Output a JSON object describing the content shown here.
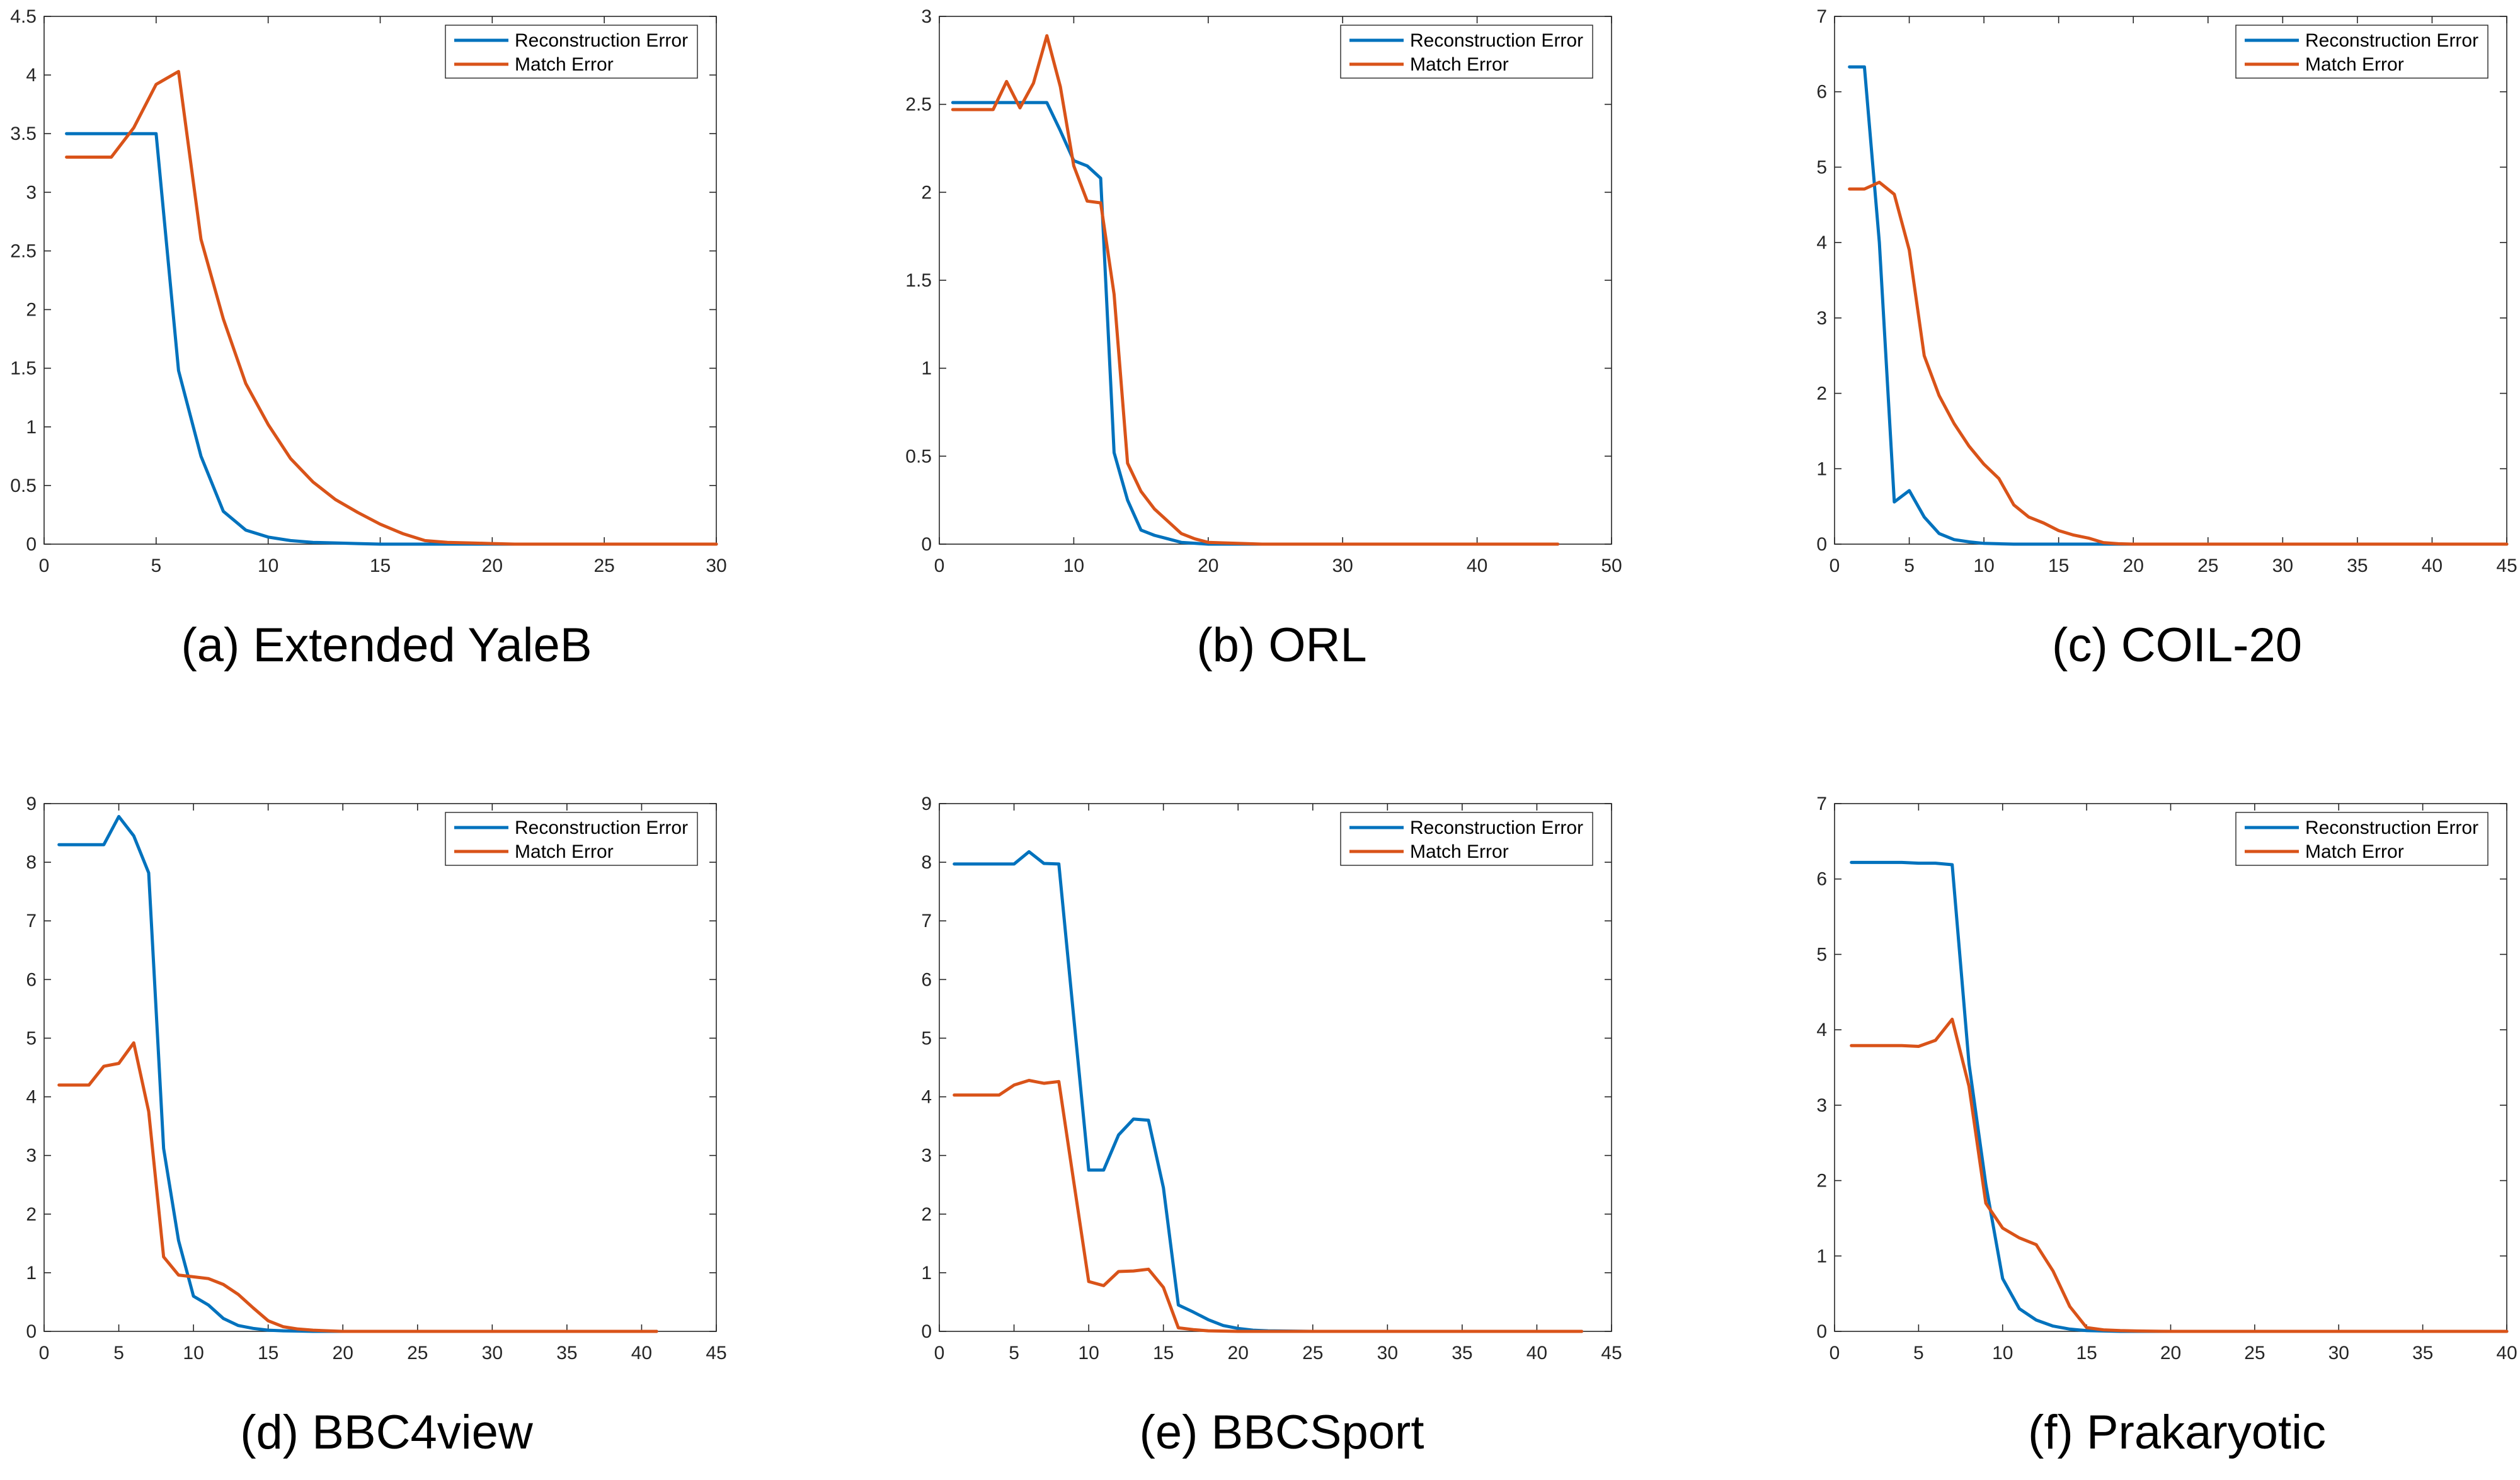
{
  "colors": {
    "reconstruction": "#0072BD",
    "match": "#D95319",
    "axis": "#262626"
  },
  "chart_data": [
    {
      "type": "line",
      "caption": "(a) Extended YaleB",
      "xlim": [
        0,
        30
      ],
      "ylim": [
        0,
        4.5
      ],
      "xticks": [
        0,
        5,
        10,
        15,
        20,
        25,
        30
      ],
      "yticks": [
        0,
        0.5,
        1,
        1.5,
        2,
        2.5,
        3,
        3.5,
        4,
        4.5
      ],
      "legend": "top-right",
      "series": [
        {
          "name": "Reconstruction Error",
          "x": [
            1,
            2,
            3,
            4,
            5,
            6,
            7,
            8,
            9,
            10,
            11,
            12,
            13,
            14,
            15,
            16,
            17,
            18,
            19,
            20,
            21,
            22,
            23,
            24,
            25,
            26,
            27,
            28,
            29,
            30
          ],
          "y": [
            3.5,
            3.5,
            3.5,
            3.5,
            3.5,
            1.48,
            0.75,
            0.28,
            0.12,
            0.06,
            0.03,
            0.015,
            0.01,
            0.005,
            0,
            0,
            0,
            0,
            0,
            0,
            0,
            0,
            0,
            0,
            0,
            0,
            0,
            0,
            0,
            0
          ]
        },
        {
          "name": "Match Error",
          "x": [
            1,
            2,
            3,
            4,
            5,
            6,
            7,
            8,
            9,
            10,
            11,
            12,
            13,
            14,
            15,
            16,
            17,
            18,
            19,
            20,
            21,
            22,
            23,
            24,
            25,
            26,
            27,
            28,
            29,
            30
          ],
          "y": [
            3.3,
            3.3,
            3.3,
            3.55,
            3.92,
            4.03,
            2.6,
            1.92,
            1.37,
            1.02,
            0.73,
            0.53,
            0.38,
            0.27,
            0.17,
            0.09,
            0.03,
            0.015,
            0.01,
            0.005,
            0,
            0,
            0,
            0,
            0,
            0,
            0,
            0,
            0,
            0
          ]
        }
      ]
    },
    {
      "type": "line",
      "caption": "(b) ORL",
      "xlim": [
        0,
        50
      ],
      "ylim": [
        0,
        3
      ],
      "xticks": [
        0,
        10,
        20,
        30,
        40,
        50
      ],
      "yticks": [
        0,
        0.5,
        1,
        1.5,
        2,
        2.5,
        3
      ],
      "legend": "top-right",
      "series": [
        {
          "name": "Reconstruction Error",
          "x": [
            1,
            2,
            3,
            4,
            5,
            6,
            7,
            8,
            9,
            10,
            11,
            12,
            13,
            14,
            15,
            16,
            17,
            18,
            19,
            20,
            22,
            24,
            26,
            28,
            30,
            35,
            40,
            46
          ],
          "y": [
            2.51,
            2.51,
            2.51,
            2.51,
            2.51,
            2.51,
            2.51,
            2.51,
            2.35,
            2.18,
            2.15,
            2.08,
            0.52,
            0.25,
            0.08,
            0.05,
            0.03,
            0.01,
            0.005,
            0,
            0,
            0,
            0,
            0,
            0,
            0,
            0,
            0
          ]
        },
        {
          "name": "Match Error",
          "x": [
            1,
            2,
            3,
            4,
            5,
            6,
            7,
            8,
            9,
            10,
            11,
            12,
            13,
            14,
            15,
            16,
            17,
            18,
            19,
            20,
            22,
            24,
            26,
            28,
            30,
            35,
            40,
            46
          ],
          "y": [
            2.47,
            2.47,
            2.47,
            2.47,
            2.63,
            2.48,
            2.62,
            2.89,
            2.6,
            2.15,
            1.95,
            1.94,
            1.42,
            0.46,
            0.3,
            0.2,
            0.13,
            0.06,
            0.03,
            0.01,
            0.005,
            0,
            0,
            0,
            0,
            0,
            0,
            0
          ]
        }
      ]
    },
    {
      "type": "line",
      "caption": "(c) COIL-20",
      "xlim": [
        0,
        45
      ],
      "ylim": [
        0,
        7
      ],
      "xticks": [
        0,
        5,
        10,
        15,
        20,
        25,
        30,
        35,
        40,
        45
      ],
      "yticks": [
        0,
        1,
        2,
        3,
        4,
        5,
        6,
        7
      ],
      "legend": "top-right",
      "series": [
        {
          "name": "Reconstruction Error",
          "x": [
            1,
            2,
            3,
            4,
            5,
            6,
            7,
            8,
            9,
            10,
            11,
            12,
            13,
            14,
            15,
            16,
            17,
            18,
            20,
            25,
            30,
            35,
            40,
            45
          ],
          "y": [
            6.33,
            6.33,
            4.0,
            0.56,
            0.71,
            0.36,
            0.14,
            0.06,
            0.03,
            0.01,
            0.005,
            0,
            0,
            0,
            0,
            0,
            0,
            0,
            0,
            0,
            0,
            0,
            0,
            0
          ]
        },
        {
          "name": "Match Error",
          "x": [
            1,
            2,
            3,
            4,
            5,
            6,
            7,
            8,
            9,
            10,
            11,
            12,
            13,
            14,
            15,
            16,
            17,
            18,
            19,
            20,
            25,
            30,
            35,
            40,
            45
          ],
          "y": [
            4.71,
            4.71,
            4.8,
            4.64,
            3.9,
            2.5,
            1.97,
            1.6,
            1.3,
            1.06,
            0.87,
            0.52,
            0.36,
            0.28,
            0.18,
            0.12,
            0.08,
            0.02,
            0.005,
            0,
            0,
            0,
            0,
            0,
            0
          ]
        }
      ]
    },
    {
      "type": "line",
      "caption": "(d) BBC4view",
      "xlim": [
        0,
        45
      ],
      "ylim": [
        0,
        9
      ],
      "xticks": [
        0,
        5,
        10,
        15,
        20,
        25,
        30,
        35,
        40,
        45
      ],
      "yticks": [
        0,
        1,
        2,
        3,
        4,
        5,
        6,
        7,
        8,
        9
      ],
      "legend": "top-right",
      "series": [
        {
          "name": "Reconstruction Error",
          "x": [
            1,
            2,
            3,
            4,
            5,
            6,
            7,
            8,
            9,
            10,
            11,
            12,
            13,
            14,
            15,
            16,
            17,
            18,
            20,
            25,
            30,
            35,
            41
          ],
          "y": [
            8.3,
            8.3,
            8.3,
            8.3,
            8.78,
            8.45,
            7.82,
            3.12,
            1.55,
            0.6,
            0.45,
            0.22,
            0.1,
            0.05,
            0.02,
            0.01,
            0.005,
            0,
            0,
            0,
            0,
            0,
            0
          ]
        },
        {
          "name": "Match Error",
          "x": [
            1,
            2,
            3,
            4,
            5,
            6,
            7,
            8,
            9,
            10,
            11,
            12,
            13,
            14,
            15,
            16,
            17,
            18,
            19,
            20,
            25,
            30,
            35,
            41
          ],
          "y": [
            4.2,
            4.2,
            4.2,
            4.52,
            4.57,
            4.92,
            3.75,
            1.27,
            0.96,
            0.93,
            0.9,
            0.8,
            0.63,
            0.4,
            0.18,
            0.08,
            0.04,
            0.02,
            0.01,
            0,
            0,
            0,
            0,
            0
          ]
        }
      ]
    },
    {
      "type": "line",
      "caption": "(e) BBCSport",
      "xlim": [
        0,
        45
      ],
      "ylim": [
        0,
        9
      ],
      "xticks": [
        0,
        5,
        10,
        15,
        20,
        25,
        30,
        35,
        40,
        45
      ],
      "yticks": [
        0,
        1,
        2,
        3,
        4,
        5,
        6,
        7,
        8,
        9
      ],
      "legend": "top-right",
      "series": [
        {
          "name": "Reconstruction Error",
          "x": [
            1,
            2,
            3,
            4,
            5,
            6,
            7,
            8,
            9,
            10,
            11,
            12,
            13,
            14,
            15,
            16,
            17,
            18,
            19,
            20,
            21,
            22,
            25,
            30,
            35,
            40,
            43
          ],
          "y": [
            7.97,
            7.97,
            7.97,
            7.97,
            7.97,
            8.18,
            7.98,
            7.97,
            5.35,
            2.75,
            2.75,
            3.35,
            3.62,
            3.6,
            2.45,
            0.45,
            0.33,
            0.2,
            0.1,
            0.05,
            0.02,
            0.01,
            0,
            0,
            0,
            0,
            0
          ]
        },
        {
          "name": "Match Error",
          "x": [
            1,
            2,
            3,
            4,
            5,
            6,
            7,
            8,
            9,
            10,
            11,
            12,
            13,
            14,
            15,
            16,
            17,
            18,
            20,
            25,
            30,
            35,
            40,
            43
          ],
          "y": [
            4.03,
            4.03,
            4.03,
            4.03,
            4.2,
            4.28,
            4.23,
            4.26,
            2.55,
            0.85,
            0.78,
            1.02,
            1.03,
            1.06,
            0.75,
            0.06,
            0.03,
            0.01,
            0,
            0,
            0,
            0,
            0,
            0
          ]
        }
      ]
    },
    {
      "type": "line",
      "caption": "(f) Prakaryotic",
      "xlim": [
        0,
        40
      ],
      "ylim": [
        0,
        7
      ],
      "xticks": [
        0,
        5,
        10,
        15,
        20,
        25,
        30,
        35,
        40
      ],
      "yticks": [
        0,
        1,
        2,
        3,
        4,
        5,
        6,
        7
      ],
      "legend": "top-right",
      "series": [
        {
          "name": "Reconstruction Error",
          "x": [
            1,
            2,
            3,
            4,
            5,
            6,
            7,
            8,
            9,
            10,
            11,
            12,
            13,
            14,
            15,
            16,
            17,
            20,
            25,
            30,
            35,
            40
          ],
          "y": [
            6.22,
            6.22,
            6.22,
            6.22,
            6.21,
            6.21,
            6.19,
            3.55,
            1.95,
            0.7,
            0.3,
            0.15,
            0.07,
            0.03,
            0.01,
            0.005,
            0,
            0,
            0,
            0,
            0,
            0
          ]
        },
        {
          "name": "Match Error",
          "x": [
            1,
            2,
            3,
            4,
            5,
            6,
            7,
            8,
            9,
            10,
            11,
            12,
            13,
            14,
            15,
            16,
            17,
            18,
            20,
            25,
            30,
            35,
            40
          ],
          "y": [
            3.79,
            3.79,
            3.79,
            3.79,
            3.78,
            3.86,
            4.14,
            3.25,
            1.7,
            1.37,
            1.24,
            1.15,
            0.8,
            0.33,
            0.05,
            0.02,
            0.01,
            0.005,
            0,
            0,
            0,
            0,
            0
          ]
        }
      ]
    }
  ]
}
